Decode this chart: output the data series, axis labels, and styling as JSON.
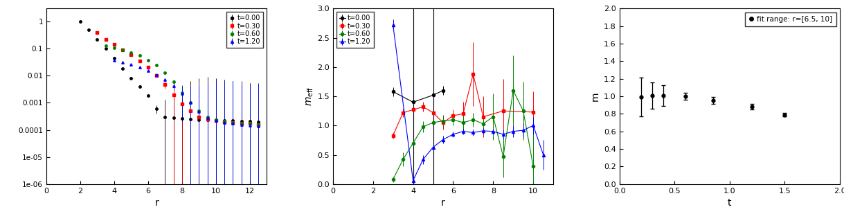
{
  "panel1": {
    "xlabel": "r",
    "ylim_log": [
      1e-06,
      3
    ],
    "xlim": [
      0,
      13
    ],
    "xticks": [
      0,
      2,
      4,
      6,
      8,
      10,
      12
    ],
    "yticks_vals": [
      1,
      0.1,
      0.01,
      0.001,
      0.0001,
      1e-05,
      1e-06
    ],
    "yticks_labels": [
      "1",
      "0.1",
      "0.01",
      "0.001",
      "0.0001",
      "1e-05",
      "1e-06"
    ],
    "series": [
      {
        "label": "t=0.00",
        "color": "black",
        "marker": "o",
        "x": [
          2.0,
          2.5,
          3.0,
          3.5,
          4.0,
          4.5,
          5.0,
          5.5,
          6.0,
          6.5,
          7.0,
          7.5,
          8.0,
          8.5,
          9.0,
          9.5,
          10.0,
          10.5,
          11.0,
          11.5,
          12.0,
          12.5
        ],
        "y": [
          1.0,
          0.5,
          0.22,
          0.1,
          0.045,
          0.018,
          0.008,
          0.004,
          0.0018,
          0.0006,
          0.0003,
          0.00028,
          0.00026,
          0.00025,
          0.00024,
          0.00024,
          0.00023,
          0.00022,
          0.00022,
          0.00021,
          0.00021,
          0.0002
        ],
        "yerr": [
          0.0,
          0.0,
          0.0,
          0.0,
          0.0,
          0.0,
          0.0,
          0.0,
          0.0001,
          0.0002,
          0.001,
          0.002,
          0.004,
          0.006,
          0.008,
          0.009,
          0.008,
          0.007,
          0.006,
          0.006,
          0.005,
          0.005
        ]
      },
      {
        "label": "t=0.30",
        "color": "red",
        "marker": "s",
        "x": [
          3.0,
          3.5,
          4.0,
          4.5,
          5.0,
          5.5,
          6.0,
          6.5,
          7.0,
          7.5,
          8.0,
          8.5,
          9.0,
          9.5,
          10.0,
          10.5,
          11.0,
          11.5,
          12.0,
          12.5
        ],
        "y": [
          0.38,
          0.22,
          0.14,
          0.09,
          0.058,
          0.035,
          0.02,
          0.01,
          0.0048,
          0.002,
          0.0009,
          0.0005,
          0.0003,
          0.00025,
          0.00022,
          0.0002,
          0.00019,
          0.00018,
          0.00017,
          0.00016
        ],
        "yerr": [
          0.0,
          0.0,
          0.0,
          0.0,
          0.0,
          0.0,
          0.0005,
          0.001,
          0.0015,
          0.002,
          0.003,
          0.004,
          0.005,
          0.006,
          0.006,
          0.006,
          0.006,
          0.005,
          0.005,
          0.005
        ]
      },
      {
        "label": "t=0.60",
        "color": "green",
        "marker": "o",
        "x": [
          3.5,
          4.0,
          4.5,
          5.0,
          5.5,
          6.0,
          6.5,
          7.0,
          7.5,
          8.0,
          8.5,
          9.0,
          9.5,
          10.0,
          10.5,
          11.0,
          11.5,
          12.0,
          12.5
        ],
        "y": [
          0.13,
          0.11,
          0.09,
          0.072,
          0.055,
          0.038,
          0.024,
          0.013,
          0.006,
          0.0024,
          0.001,
          0.0005,
          0.0003,
          0.00024,
          0.00021,
          0.00019,
          0.00018,
          0.00017,
          0.00016
        ],
        "yerr": [
          0.0,
          0.0,
          0.0,
          0.0,
          0.0,
          0.0,
          0.0005,
          0.001,
          0.001,
          0.002,
          0.003,
          0.004,
          0.005,
          0.006,
          0.006,
          0.006,
          0.005,
          0.005,
          0.005
        ]
      },
      {
        "label": "t=1.20",
        "color": "blue",
        "marker": "^",
        "x": [
          4.0,
          4.5,
          5.0,
          5.5,
          6.0,
          6.5,
          7.0,
          7.5,
          8.0,
          8.5,
          9.0,
          9.5,
          10.0,
          10.5,
          11.0,
          11.5,
          12.0,
          12.5
        ],
        "y": [
          0.038,
          0.032,
          0.026,
          0.02,
          0.015,
          0.011,
          0.007,
          0.0042,
          0.0022,
          0.001,
          0.00048,
          0.00028,
          0.00022,
          0.00019,
          0.00017,
          0.00016,
          0.00015,
          0.00014
        ],
        "yerr": [
          0.0,
          0.0,
          0.0,
          0.0,
          0.0,
          0.0005,
          0.0008,
          0.001,
          0.002,
          0.003,
          0.004,
          0.005,
          0.006,
          0.006,
          0.006,
          0.005,
          0.005,
          0.005
        ]
      }
    ]
  },
  "panel2": {
    "xlabel": "r",
    "ylabel": "m_eff",
    "ylim": [
      0,
      3
    ],
    "xlim": [
      0,
      11
    ],
    "xticks": [
      0,
      2,
      4,
      6,
      8,
      10
    ],
    "series": [
      {
        "label": "t=0.00",
        "color": "black",
        "marker": "o",
        "x": [
          3.0,
          4.0,
          5.0,
          5.5
        ],
        "y": [
          1.58,
          1.4,
          1.52,
          1.6
        ],
        "yerr": [
          0.08,
          0.09,
          0.06,
          0.08
        ]
      },
      {
        "label": "t=0.30",
        "color": "red",
        "marker": "s",
        "x": [
          3.0,
          3.5,
          4.0,
          4.5,
          5.0,
          5.5,
          6.0,
          6.5,
          7.0,
          7.5,
          8.5,
          10.0
        ],
        "y": [
          0.83,
          1.22,
          1.27,
          1.32,
          1.22,
          1.05,
          1.17,
          1.2,
          1.88,
          1.15,
          1.25,
          1.23
        ],
        "yerr": [
          0.05,
          0.07,
          0.06,
          0.08,
          0.08,
          0.12,
          0.1,
          0.2,
          0.55,
          0.35,
          0.55,
          0.35
        ]
      },
      {
        "label": "t=0.60",
        "color": "green",
        "marker": "o",
        "x": [
          3.0,
          3.5,
          4.0,
          4.5,
          5.0,
          5.5,
          6.0,
          6.5,
          7.0,
          7.5,
          8.0,
          8.5,
          9.0,
          9.5,
          10.0
        ],
        "y": [
          0.08,
          0.42,
          0.7,
          0.98,
          1.05,
          1.08,
          1.1,
          1.05,
          1.1,
          1.03,
          1.15,
          0.47,
          1.6,
          1.25,
          0.3
        ],
        "yerr": [
          0.05,
          0.12,
          0.12,
          0.1,
          0.08,
          0.1,
          0.1,
          0.15,
          0.12,
          0.15,
          0.4,
          0.35,
          0.6,
          0.5,
          0.7
        ]
      },
      {
        "label": "t=1.20",
        "color": "blue",
        "marker": "^",
        "x": [
          3.0,
          4.0,
          4.5,
          5.0,
          5.5,
          6.0,
          6.5,
          7.0,
          7.5,
          8.0,
          8.5,
          9.0,
          9.5,
          10.0,
          10.5
        ],
        "y": [
          2.72,
          0.06,
          0.42,
          0.63,
          0.76,
          0.85,
          0.9,
          0.88,
          0.91,
          0.9,
          0.85,
          0.9,
          0.92,
          1.0,
          0.5
        ],
        "yerr": [
          0.1,
          0.1,
          0.08,
          0.07,
          0.06,
          0.05,
          0.05,
          0.05,
          0.05,
          0.05,
          0.08,
          0.1,
          0.12,
          0.15,
          0.25
        ]
      }
    ],
    "vlines": [
      4.0,
      5.0
    ]
  },
  "panel3": {
    "xlabel": "t",
    "ylabel": "m",
    "ylim": [
      0,
      2
    ],
    "xlim": [
      0,
      2
    ],
    "xticks": [
      0,
      0.5,
      1.0,
      1.5,
      2.0
    ],
    "yticks": [
      0,
      0.2,
      0.4,
      0.6,
      0.8,
      1.0,
      1.2,
      1.4,
      1.6,
      1.8,
      2.0
    ],
    "legend_label": "fit range: r=[6.5, 10]",
    "x": [
      0.2,
      0.3,
      0.4,
      0.6,
      0.85,
      1.2,
      1.5
    ],
    "y": [
      0.99,
      1.01,
      1.01,
      1.0,
      0.95,
      0.88,
      0.79
    ],
    "yerr": [
      0.22,
      0.15,
      0.12,
      0.04,
      0.04,
      0.03,
      0.02
    ]
  }
}
